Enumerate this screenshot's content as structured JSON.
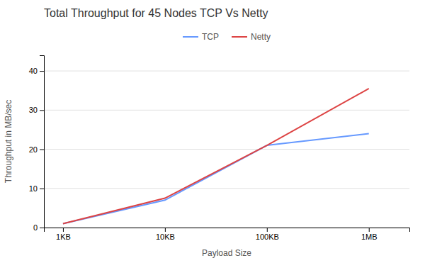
{
  "chart_data": {
    "type": "line",
    "title": "Total Throughput for 45 Nodes TCP Vs Netty",
    "xlabel": "Payload Size",
    "ylabel": "Throughput in MB/sec",
    "x": [
      1,
      10,
      100,
      1000
    ],
    "series": [
      {
        "name": "TCP",
        "color": "#6699ff",
        "values": [
          1.0,
          7.0,
          21.0,
          24.0
        ]
      },
      {
        "name": "Netty",
        "color": "#dd4444",
        "values": [
          1.0,
          7.5,
          21.0,
          35.5
        ]
      }
    ],
    "xlim": [
      0.65,
      2500
    ],
    "xticks": [
      {
        "value": 1,
        "label": "1KB"
      },
      {
        "value": 10,
        "label": "10KB"
      },
      {
        "value": 100,
        "label": "100KB"
      },
      {
        "value": 1000,
        "label": "1MB"
      }
    ],
    "ylim": [
      0,
      44
    ],
    "yticks": [
      0,
      10,
      20,
      30,
      40
    ],
    "log": "x",
    "grid": true,
    "legend": "top"
  }
}
